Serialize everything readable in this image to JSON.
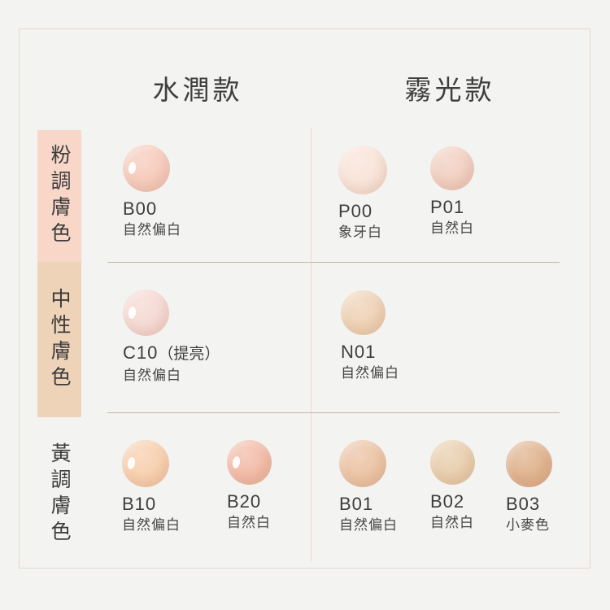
{
  "colors": {
    "background": "#f3f3f1",
    "frame_border": "#e3d9cb",
    "divider_h": "#c8b69e",
    "divider_v": "#edd7cb"
  },
  "header": {
    "columns": [
      {
        "id": "dewy",
        "label": "水潤款"
      },
      {
        "id": "matte",
        "label": "霧光款"
      }
    ]
  },
  "categories": [
    {
      "id": "pink-tone",
      "label": "粉調膚色",
      "bar_color": "#f8d7c9"
    },
    {
      "id": "neutral-tone",
      "label": "中性膚色",
      "bar_color": "#eed3b9"
    },
    {
      "id": "yellow-tone",
      "label": "黃調膚色",
      "bar_color": null
    }
  ],
  "swatches": [
    {
      "code": "B00",
      "suffix": "",
      "name": "自然偏白",
      "color": "#f6cbbc",
      "column": "水潤款",
      "category": "粉調膚色",
      "glossy": true
    },
    {
      "code": "P00",
      "suffix": "",
      "name": "象牙白",
      "color": "#f8e3d8",
      "column": "霧光款",
      "category": "粉調膚色",
      "glossy": false
    },
    {
      "code": "P01",
      "suffix": "",
      "name": "自然白",
      "color": "#f1cfc1",
      "column": "霧光款",
      "category": "粉調膚色",
      "glossy": false
    },
    {
      "code": "C10",
      "suffix": "（提亮）",
      "name": "自然偏白",
      "color": "#f5d9d3",
      "column": "水潤款",
      "category": "中性膚色",
      "glossy": true
    },
    {
      "code": "N01",
      "suffix": "",
      "name": "自然偏白",
      "color": "#eed2b6",
      "column": "霧光款",
      "category": "中性膚色",
      "glossy": false
    },
    {
      "code": "B10",
      "suffix": "",
      "name": "自然偏白",
      "color": "#f7cfae",
      "column": "水潤款",
      "category": "黃調膚色",
      "glossy": true
    },
    {
      "code": "B20",
      "suffix": "",
      "name": "自然白",
      "color": "#f2bba7",
      "column": "水潤款",
      "category": "黃調膚色",
      "glossy": true
    },
    {
      "code": "B01",
      "suffix": "",
      "name": "自然偏白",
      "color": "#ebc3a4",
      "column": "霧光款",
      "category": "黃調膚色",
      "glossy": false
    },
    {
      "code": "B02",
      "suffix": "",
      "name": "自然白",
      "color": "#e8cead",
      "column": "霧光款",
      "category": "黃調膚色",
      "glossy": false
    },
    {
      "code": "B03",
      "suffix": "",
      "name": "小麥色",
      "color": "#dfb28d",
      "column": "霧光款",
      "category": "黃調膚色",
      "glossy": false
    }
  ]
}
